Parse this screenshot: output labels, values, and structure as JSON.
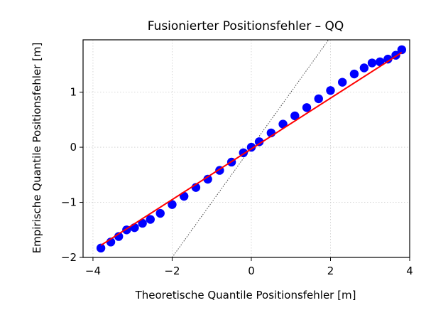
{
  "chart_data": {
    "type": "scatter",
    "title": "Fusionierter Positionsfehler – QQ",
    "xlabel": "Theoretische Quantile Positionsfehler [m]",
    "ylabel": "Empirische Quantile Positionsfehler [m]",
    "xlim": [
      -4.25,
      4.0
    ],
    "ylim": [
      -2.0,
      1.95
    ],
    "x_ticks": [
      -4,
      -2,
      0,
      2,
      4
    ],
    "x_tick_labels": [
      "−4",
      "−2",
      "0",
      "2",
      "4"
    ],
    "y_ticks": [
      -2,
      -1,
      0,
      1
    ],
    "y_tick_labels": [
      "−2",
      "−1",
      "0",
      "1"
    ],
    "grid": true,
    "colors": {
      "points": "#0000ff",
      "fit_line": "#ff0000",
      "reference_line": "#444444",
      "grid": "#cccccc"
    },
    "series": [
      {
        "kind": "points",
        "x": [
          -3.8,
          -3.55,
          -3.35,
          -3.15,
          -2.95,
          -2.75,
          -2.55,
          -2.3,
          -2.0,
          -1.7,
          -1.4,
          -1.1,
          -0.8,
          -0.5,
          -0.2,
          0.0,
          0.2,
          0.5,
          0.8,
          1.1,
          1.4,
          1.7,
          2.0,
          2.3,
          2.6,
          2.85,
          3.05,
          3.25,
          3.45,
          3.65,
          3.8
        ],
        "y": [
          -1.83,
          -1.72,
          -1.62,
          -1.5,
          -1.46,
          -1.38,
          -1.31,
          -1.2,
          -1.04,
          -0.89,
          -0.73,
          -0.58,
          -0.42,
          -0.27,
          -0.1,
          0.0,
          0.1,
          0.26,
          0.42,
          0.57,
          0.72,
          0.88,
          1.03,
          1.18,
          1.33,
          1.44,
          1.53,
          1.55,
          1.6,
          1.67,
          1.77
        ]
      },
      {
        "kind": "fit_line",
        "x": [
          -3.8,
          3.8
        ],
        "y": [
          -1.78,
          1.72
        ]
      },
      {
        "kind": "reference_line",
        "x": [
          -2.0,
          1.95
        ],
        "y": [
          -2.0,
          1.95
        ]
      }
    ]
  }
}
